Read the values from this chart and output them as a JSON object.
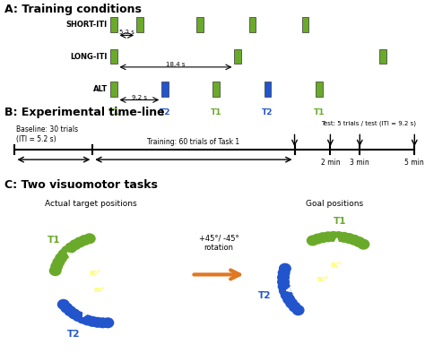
{
  "title_A": "A: Training conditions",
  "title_B": "B: Experimental time-line",
  "title_C": "C: Two visuomotor tasks",
  "green_color": "#6aaa2a",
  "blue_color": "#2255cc",
  "black_bg": "#000000",
  "arrow_color": "#e07820",
  "label_SHORT": "SHORT-ITI",
  "label_LONG": "LONG-ITI",
  "label_ALT": "ALT",
  "iti_short": "5.2 s",
  "iti_long": "18.4 s",
  "iti_alt": "9.2 s",
  "t1_label": "T1",
  "t2_label": "T2",
  "baseline_text": "Baseline: 30 trials\n(ITI = 5.2 s)",
  "training_text": "Training: 60 trials of Task 1",
  "test_text": "Test: 5 trials / test (ITI = 9.2 s)",
  "min2": "2 min",
  "min3": "3 min",
  "min5": "5 min",
  "actual_title": "Actual target positions",
  "goal_title": "Goal positions",
  "rotation_text": "+45°/ -45°\nrotation"
}
